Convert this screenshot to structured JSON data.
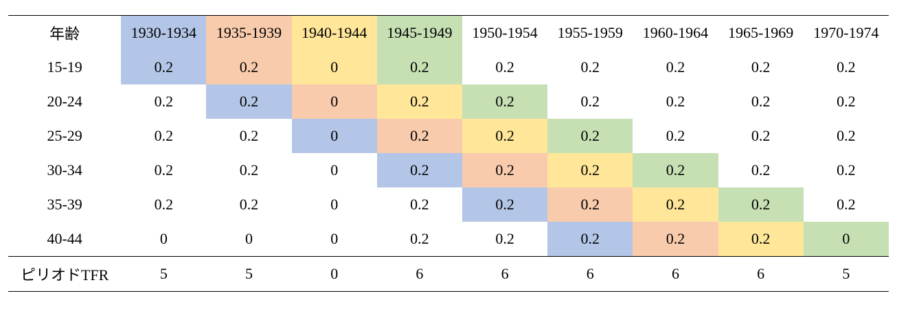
{
  "table": {
    "corner_label": "年齢",
    "columns": [
      "1930-1934",
      "1935-1939",
      "1940-1944",
      "1945-1949",
      "1950-1954",
      "1955-1959",
      "1960-1964",
      "1965-1969",
      "1970-1974"
    ],
    "rows": [
      {
        "age": "15-19",
        "values": [
          "0.2",
          "0.2",
          "0",
          "0.2",
          "0.2",
          "0.2",
          "0.2",
          "0.2",
          "0.2"
        ]
      },
      {
        "age": "20-24",
        "values": [
          "0.2",
          "0.2",
          "0",
          "0.2",
          "0.2",
          "0.2",
          "0.2",
          "0.2",
          "0.2"
        ]
      },
      {
        "age": "25-29",
        "values": [
          "0.2",
          "0.2",
          "0",
          "0.2",
          "0.2",
          "0.2",
          "0.2",
          "0.2",
          "0.2"
        ]
      },
      {
        "age": "30-34",
        "values": [
          "0.2",
          "0.2",
          "0",
          "0.2",
          "0.2",
          "0.2",
          "0.2",
          "0.2",
          "0.2"
        ]
      },
      {
        "age": "35-39",
        "values": [
          "0.2",
          "0.2",
          "0",
          "0.2",
          "0.2",
          "0.2",
          "0.2",
          "0.2",
          "0.2"
        ]
      },
      {
        "age": "40-44",
        "values": [
          "0",
          "0",
          "0",
          "0.2",
          "0.2",
          "0.2",
          "0.2",
          "0.2",
          "0"
        ]
      }
    ],
    "footer": {
      "label": "ピリオドTFR",
      "values": [
        "5",
        "5",
        "0",
        "6",
        "6",
        "6",
        "6",
        "6",
        "5"
      ]
    }
  },
  "cohort_colors": {
    "1930-1934": "#b4c6e7",
    "1935-1939": "#f8cbad",
    "1940-1944": "#ffe699",
    "1945-1949": "#c6e0b4"
  }
}
